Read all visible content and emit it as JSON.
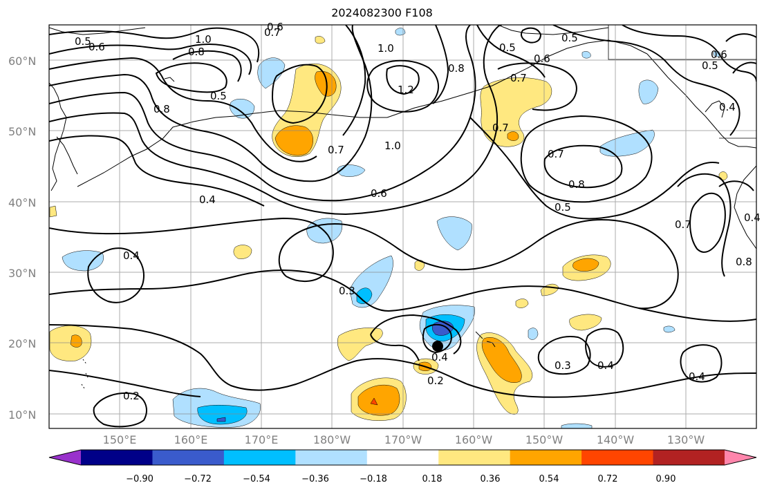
{
  "title": "2024082300 F108",
  "colors": {
    "pos_018": "#ffe880",
    "pos_036": "#ffa500",
    "pos_054": "#ff4500",
    "pos_072": "#b22222",
    "pos_090": "#ff86ac",
    "neg_018": "#b0e0ff",
    "neg_036": "#00bfff",
    "neg_054": "#3a5bcc",
    "neg_072": "#000088",
    "neg_090": "#9932cc",
    "grid": "#888888",
    "marker": "#000000"
  },
  "lat_labels": [
    "60°N",
    "50°N",
    "40°N",
    "30°N",
    "20°N",
    "10°N"
  ],
  "lon_labels": [
    "150°E",
    "160°E",
    "170°E",
    "180°W",
    "170°W",
    "160°W",
    "150°W",
    "140°W",
    "130°W"
  ],
  "colorbar": {
    "colors": [
      "#9932cc",
      "#000088",
      "#3a5bcc",
      "#00bfff",
      "#b0e0ff",
      "#ffffff",
      "#ffe880",
      "#ffa500",
      "#ff4500",
      "#b22222",
      "#ff86ac"
    ],
    "tick_labels": [
      "−0.90",
      "−0.72",
      "−0.54",
      "−0.36",
      "−0.18",
      "0.18",
      "0.36",
      "0.54",
      "0.72",
      "0.90"
    ]
  },
  "contour_labels": [
    {
      "text": "0.5"
    },
    {
      "text": "0.6"
    },
    {
      "text": "1.0"
    },
    {
      "text": "0.8"
    },
    {
      "text": "0.7"
    },
    {
      "text": "0.6"
    },
    {
      "text": "0.5"
    },
    {
      "text": "0.8"
    },
    {
      "text": "1.0"
    },
    {
      "text": "1.2"
    },
    {
      "text": "0.8"
    },
    {
      "text": "0.5"
    },
    {
      "text": "0.6"
    },
    {
      "text": "0.5"
    },
    {
      "text": "0.7"
    },
    {
      "text": "0.6"
    },
    {
      "text": "0.5"
    },
    {
      "text": "0.7"
    },
    {
      "text": "1.0"
    },
    {
      "text": "0.7"
    },
    {
      "text": "0.6"
    },
    {
      "text": "0.4"
    },
    {
      "text": "0.7"
    },
    {
      "text": "0.8"
    },
    {
      "text": "0.5"
    },
    {
      "text": "0.4"
    },
    {
      "text": "0.4"
    },
    {
      "text": "0.7"
    },
    {
      "text": "0.8"
    },
    {
      "text": "0.4"
    },
    {
      "text": "0.3"
    },
    {
      "text": "0.4"
    },
    {
      "text": "0.2"
    },
    {
      "text": "0.3"
    },
    {
      "text": "0.4"
    },
    {
      "text": "0.4"
    },
    {
      "text": "0.2"
    }
  ],
  "marker": {
    "name": "storm-center",
    "lat": 19.4,
    "lon": -165.3
  }
}
